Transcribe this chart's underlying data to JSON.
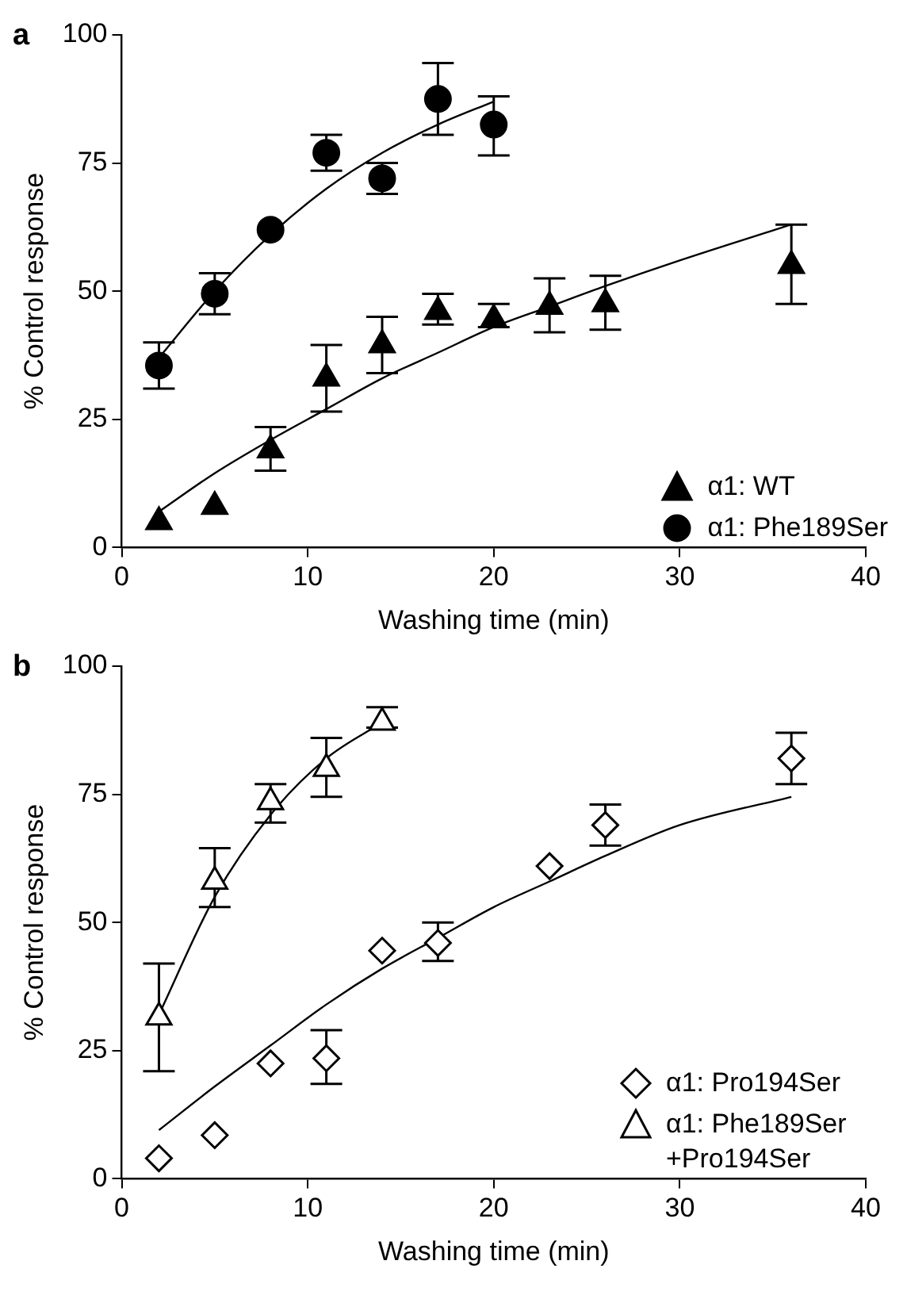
{
  "chart_data": [
    {
      "type": "scatter",
      "title": "a",
      "xlabel": "Washing time (min)",
      "ylabel": "% Control response",
      "xlim": [
        0,
        40
      ],
      "xticks": [
        0,
        10,
        20,
        30,
        40
      ],
      "ylim": [
        0,
        100
      ],
      "yticks": [
        0,
        25,
        50,
        75,
        100
      ],
      "grid": false,
      "legend": "bottom right",
      "series": [
        {
          "name": "α1: WT",
          "marker": "triangle",
          "color": "#000000",
          "x": [
            2,
            5,
            8,
            11,
            14,
            17,
            20,
            23,
            26,
            36
          ],
          "values": [
            5,
            8,
            19,
            33,
            39.5,
            46,
            44.5,
            47,
            47.5,
            55
          ],
          "errors": [
            null,
            null,
            [
              15,
              23.5
            ],
            [
              26.5,
              39.5
            ],
            [
              34,
              45
            ],
            [
              43.5,
              49.5
            ],
            [
              43,
              47.5
            ],
            [
              42,
              52.5
            ],
            [
              42.5,
              53
            ],
            [
              47.5,
              63
            ]
          ]
        },
        {
          "name": "α1: Phe189Ser",
          "marker": "circle",
          "color": "#000000",
          "x": [
            2,
            5,
            8,
            11,
            14,
            17,
            20
          ],
          "values": [
            35.5,
            49.5,
            62,
            77,
            72,
            87.5,
            82.5
          ],
          "errors": [
            [
              31,
              40
            ],
            [
              45.5,
              53.5
            ],
            null,
            [
              73.5,
              80.5
            ],
            [
              69,
              75
            ],
            [
              80.5,
              94.5
            ],
            [
              76.5,
              88
            ]
          ]
        },
        {
          "type": "line",
          "marker": "none",
          "color": "#000000",
          "x": [
            2,
            5,
            8,
            11,
            14,
            17,
            20
          ],
          "values": [
            37,
            50,
            61,
            70,
            77,
            82.5,
            87
          ]
        },
        {
          "type": "line",
          "marker": "none",
          "color": "#000000",
          "x": [
            2,
            5,
            8,
            11,
            14,
            17,
            20,
            23,
            26,
            30,
            36
          ],
          "values": [
            7,
            14.5,
            21,
            27,
            33,
            38,
            43,
            47,
            51,
            56,
            63
          ]
        }
      ]
    },
    {
      "type": "scatter",
      "title": "b",
      "xlabel": "Washing time (min)",
      "ylabel": "% Control response",
      "xlim": [
        0,
        40
      ],
      "xticks": [
        0,
        10,
        20,
        30,
        40
      ],
      "ylim": [
        0,
        100
      ],
      "yticks": [
        0,
        25,
        50,
        75,
        100
      ],
      "grid": false,
      "legend": "bottom right",
      "series": [
        {
          "name": "α1: Pro194Ser",
          "marker": "diamond",
          "color": "#ffffff",
          "x": [
            2,
            5,
            8,
            11,
            14,
            17,
            23,
            26,
            36
          ],
          "values": [
            4,
            8.5,
            22.5,
            23.5,
            44.5,
            46,
            61,
            69,
            82
          ],
          "errors": [
            null,
            null,
            null,
            [
              18.5,
              29
            ],
            null,
            [
              42.5,
              50
            ],
            null,
            [
              65,
              73
            ],
            [
              77,
              87
            ]
          ]
        },
        {
          "name": "α1: Phe189Ser +Pro194Ser",
          "marker": "triangle",
          "color": "#ffffff",
          "x": [
            2,
            5,
            8,
            11,
            14
          ],
          "values": [
            31.5,
            58,
            73.5,
            80,
            89
          ],
          "errors": [
            [
              21,
              42
            ],
            [
              53,
              64.5
            ],
            [
              69.5,
              77
            ],
            [
              74.5,
              86
            ],
            [
              88,
              92
            ]
          ]
        },
        {
          "type": "line",
          "marker": "none",
          "color": "#000000",
          "x": [
            2,
            5,
            8,
            11,
            14
          ],
          "values": [
            32,
            55,
            71,
            82,
            89
          ]
        },
        {
          "type": "line",
          "marker": "none",
          "color": "#000000",
          "x": [
            2,
            5,
            8,
            11,
            14,
            17,
            20,
            23,
            26,
            30,
            36
          ],
          "values": [
            9.5,
            18,
            26,
            34,
            41,
            47,
            53,
            58,
            63,
            69,
            74.5
          ]
        }
      ]
    }
  ]
}
